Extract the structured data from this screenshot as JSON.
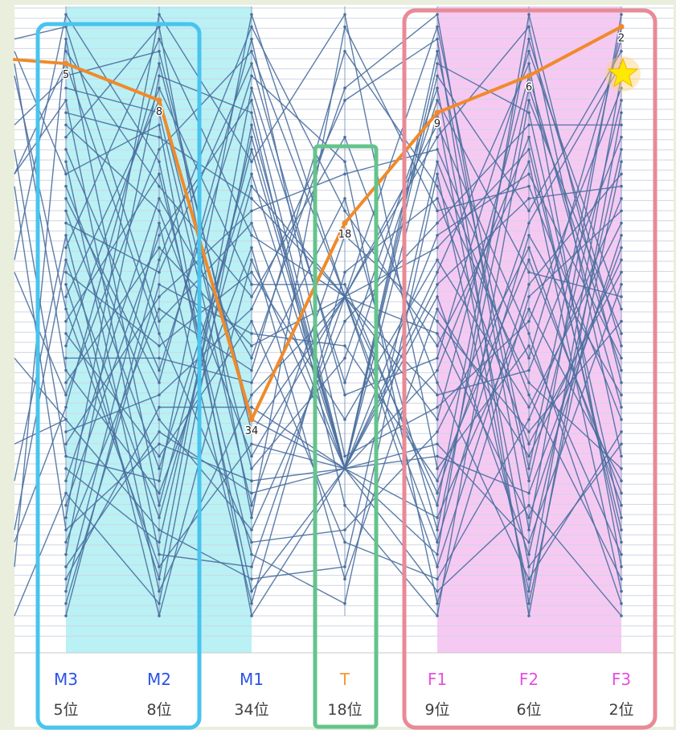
{
  "colors": {
    "background": "#e9eedd",
    "panel": "#ffffff",
    "line": "#4a6f9e",
    "highlight": "#f08a2a",
    "cyan_fill": "#b9f1f5",
    "cyan_border": "#48c4ee",
    "pink_fill": "#f6c9f3",
    "pink_border": "#e98a97",
    "green_border": "#64c48c",
    "star": "#ffe900",
    "label_blue": "#2a54e6",
    "label_orange": "#f39a3a",
    "label_magenta": "#e64fe0",
    "rank_text": "#404040"
  },
  "chart_data": {
    "type": "line",
    "description_axes": [
      "M3",
      "M2",
      "M1",
      "T",
      "F1",
      "F2",
      "F3"
    ],
    "axis_labels": [
      {
        "name": "M3",
        "rank_text": "5位",
        "color": "blue"
      },
      {
        "name": "M2",
        "rank_text": "8位",
        "color": "blue"
      },
      {
        "name": "M1",
        "rank_text": "34位",
        "color": "blue"
      },
      {
        "name": "T",
        "rank_text": "18位",
        "color": "orange"
      },
      {
        "name": "F1",
        "rank_text": "9位",
        "color": "magenta"
      },
      {
        "name": "F2",
        "rank_text": "6位",
        "color": "magenta"
      },
      {
        "name": "F3",
        "rank_text": "2位",
        "color": "magenta"
      }
    ],
    "rank_range": [
      1,
      50
    ],
    "highlight_series": {
      "ranks": [
        5,
        8,
        34,
        18,
        9,
        6,
        2
      ],
      "point_labels": [
        "5",
        "8",
        "34",
        "18",
        "9",
        "6",
        "2"
      ],
      "star_on": "F3"
    },
    "groups": [
      {
        "axes": [
          "M3",
          "M2"
        ],
        "style": "cyan"
      },
      {
        "axes": [
          "T"
        ],
        "style": "green"
      },
      {
        "axes": [
          "F1",
          "F2",
          "F3"
        ],
        "style": "pink"
      }
    ]
  }
}
